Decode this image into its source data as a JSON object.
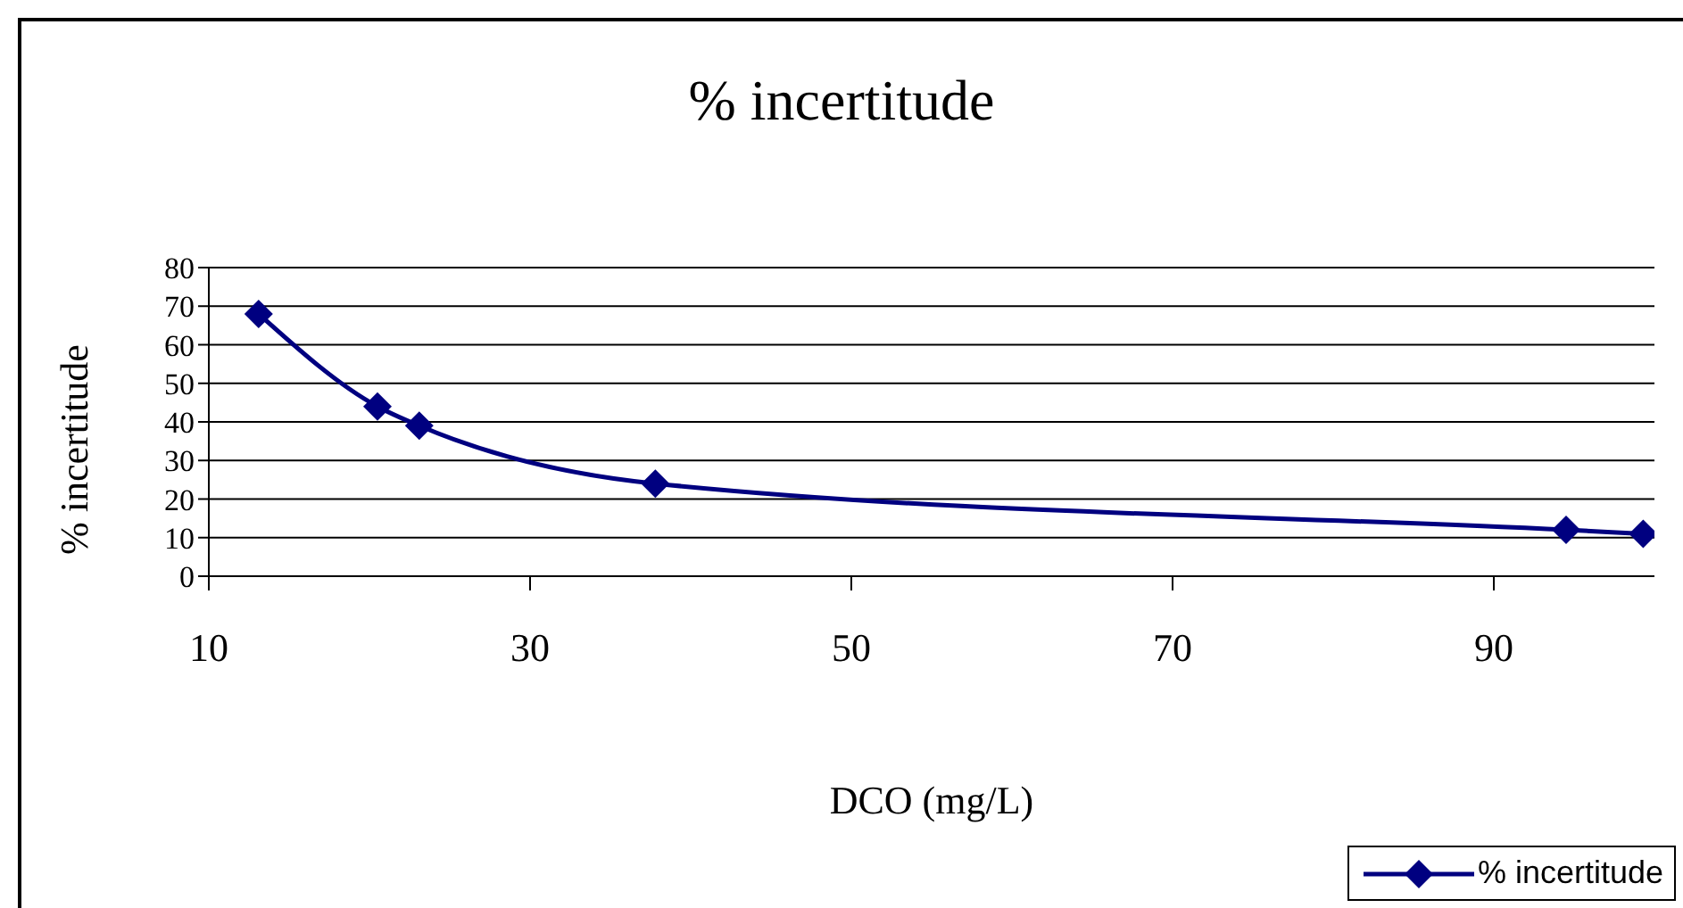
{
  "chart_data": {
    "type": "line",
    "title": "% incertitude",
    "xlabel": "DCO (mg/L)",
    "ylabel": "% incertitude",
    "x": [
      13.1,
      20.5,
      23.1,
      37.8,
      94.5,
      99.3
    ],
    "series": [
      {
        "name": "% incertitude",
        "color": "#000080",
        "values": [
          68,
          44,
          39,
          24,
          12,
          11
        ]
      }
    ],
    "xlim": [
      10,
      100
    ],
    "xticks": [
      10,
      30,
      50,
      70,
      90
    ],
    "ylim": [
      0,
      80
    ],
    "yticks": [
      0,
      10,
      20,
      30,
      40,
      50,
      60,
      70,
      80
    ],
    "grid": "y",
    "legend": "bottom right",
    "marker": "diamond",
    "line_style": "solid"
  }
}
